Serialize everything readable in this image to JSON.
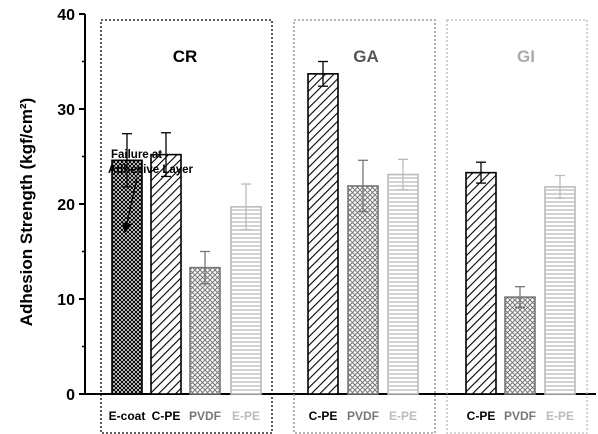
{
  "chart_data": {
    "type": "bar",
    "ylabel": "Adhesion Strength (kgf/cm²)",
    "ylim": [
      0,
      40
    ],
    "y_ticks": [
      0,
      10,
      20,
      30,
      40
    ],
    "grid": false,
    "groups": [
      {
        "name": "CR",
        "box_color": "#000000",
        "label_color": "#000000",
        "bars": [
          {
            "label": "E-coat",
            "value": 24.6,
            "error": 2.8,
            "pattern": "crosshatch-dense",
            "color": "#000000"
          },
          {
            "label": "C-PE",
            "value": 25.2,
            "error": 2.3,
            "pattern": "diagonal",
            "color": "#000000"
          },
          {
            "label": "PVDF",
            "value": 13.3,
            "error": 1.7,
            "pattern": "crosshatch",
            "color": "#777777"
          },
          {
            "label": "E-PE",
            "value": 19.7,
            "error": 2.4,
            "pattern": "horizontal",
            "color": "#bbbbbb"
          }
        ]
      },
      {
        "name": "GA",
        "box_color": "#888888",
        "label_color": "#555555",
        "bars": [
          {
            "label": "C-PE",
            "value": 33.7,
            "error": 1.3,
            "pattern": "diagonal",
            "color": "#000000"
          },
          {
            "label": "PVDF",
            "value": 21.9,
            "error": 2.7,
            "pattern": "crosshatch",
            "color": "#777777"
          },
          {
            "label": "E-PE",
            "value": 23.1,
            "error": 1.6,
            "pattern": "horizontal",
            "color": "#bbbbbb"
          }
        ]
      },
      {
        "name": "GI",
        "box_color": "#bbbbbb",
        "label_color": "#aaaaaa",
        "bars": [
          {
            "label": "C-PE",
            "value": 23.3,
            "error": 1.1,
            "pattern": "diagonal",
            "color": "#000000"
          },
          {
            "label": "PVDF",
            "value": 10.2,
            "error": 1.1,
            "pattern": "crosshatch",
            "color": "#777777"
          },
          {
            "label": "E-PE",
            "value": 21.8,
            "error": 1.2,
            "pattern": "horizontal",
            "color": "#bbbbbb"
          }
        ]
      }
    ],
    "annotation": {
      "lines": [
        "Failure at",
        "Adhesive Layer"
      ],
      "points_to": "CR E-coat"
    }
  }
}
